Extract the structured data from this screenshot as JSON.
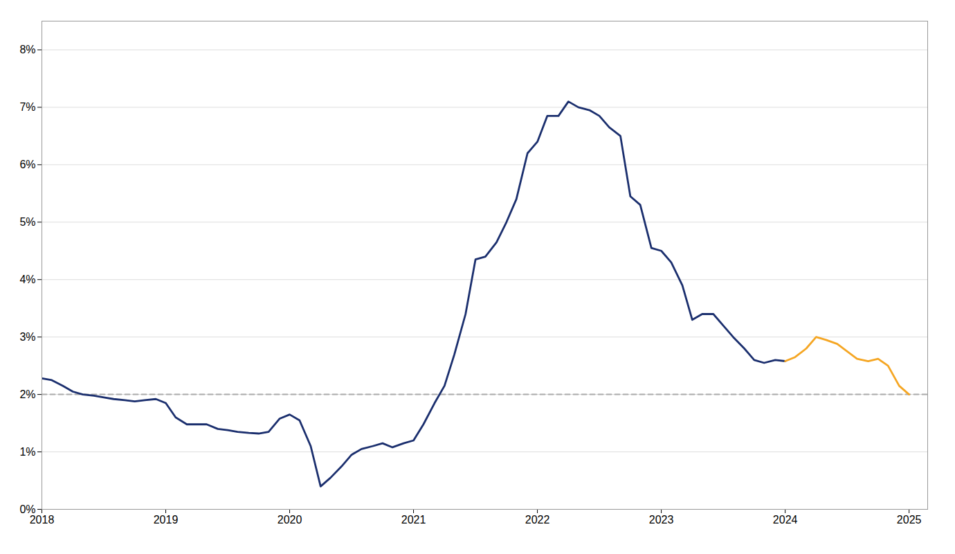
{
  "chart_data": {
    "type": "line",
    "xlim": [
      2018.0,
      2025.15
    ],
    "xticks": [
      2018,
      2019,
      2020,
      2021,
      2022,
      2023,
      2024,
      2025
    ],
    "ylim": [
      0,
      0.085
    ],
    "yticks": [
      {
        "value": 0.0,
        "label": "0%"
      },
      {
        "value": 0.01,
        "label": "1%"
      },
      {
        "value": 0.02,
        "label": "2%"
      },
      {
        "value": 0.03,
        "label": "3%"
      },
      {
        "value": 0.04,
        "label": "4%"
      },
      {
        "value": 0.05,
        "label": "5%"
      },
      {
        "value": 0.06,
        "label": "6%"
      },
      {
        "value": 0.07,
        "label": "7%"
      },
      {
        "value": 0.08,
        "label": "8%"
      }
    ],
    "grid": true,
    "series": [
      {
        "color": "#aaaaaa",
        "line_style": "dashed",
        "x": [
          2018.0,
          2025.15
        ],
        "values": [
          0.02,
          0.02
        ]
      },
      {
        "color": "#1b2f6e",
        "line_style": "solid",
        "x": [
          2018.0,
          2018.08,
          2018.17,
          2018.25,
          2018.33,
          2018.42,
          2018.5,
          2018.58,
          2018.67,
          2018.75,
          2018.83,
          2018.92,
          2019.0,
          2019.08,
          2019.17,
          2019.25,
          2019.33,
          2019.42,
          2019.5,
          2019.58,
          2019.67,
          2019.75,
          2019.83,
          2019.92,
          2020.0,
          2020.08,
          2020.17,
          2020.25,
          2020.33,
          2020.42,
          2020.5,
          2020.58,
          2020.67,
          2020.75,
          2020.83,
          2020.92,
          2021.0,
          2021.08,
          2021.17,
          2021.25,
          2021.33,
          2021.42,
          2021.5,
          2021.58,
          2021.67,
          2021.75,
          2021.83,
          2021.92,
          2022.0,
          2022.08,
          2022.17,
          2022.25,
          2022.33,
          2022.42,
          2022.5,
          2022.58,
          2022.67,
          2022.75,
          2022.83,
          2022.92,
          2023.0,
          2023.08,
          2023.17,
          2023.25,
          2023.33,
          2023.42,
          2023.5,
          2023.58,
          2023.67,
          2023.75,
          2023.83,
          2023.92,
          2024.0
        ],
        "values": [
          0.0228,
          0.0225,
          0.0215,
          0.0205,
          0.02,
          0.0198,
          0.0195,
          0.0192,
          0.019,
          0.0188,
          0.019,
          0.0192,
          0.0185,
          0.016,
          0.0148,
          0.0148,
          0.0148,
          0.014,
          0.0138,
          0.0135,
          0.0133,
          0.0132,
          0.0135,
          0.0158,
          0.0165,
          0.0155,
          0.011,
          0.004,
          0.0055,
          0.0075,
          0.0095,
          0.0105,
          0.011,
          0.0115,
          0.0108,
          0.0115,
          0.012,
          0.0148,
          0.0185,
          0.0215,
          0.027,
          0.034,
          0.0435,
          0.044,
          0.0465,
          0.05,
          0.054,
          0.062,
          0.064,
          0.0685,
          0.0685,
          0.071,
          0.07,
          0.0695,
          0.0685,
          0.0665,
          0.065,
          0.0545,
          0.053,
          0.0455,
          0.045,
          0.043,
          0.039,
          0.033,
          0.034,
          0.034,
          0.032,
          0.03,
          0.028,
          0.026,
          0.0255,
          0.026,
          0.0258
        ]
      },
      {
        "color": "#f5a623",
        "line_style": "solid",
        "x": [
          2024.0,
          2024.08,
          2024.17,
          2024.25,
          2024.33,
          2024.42,
          2024.5,
          2024.58,
          2024.67,
          2024.75,
          2024.83,
          2024.92,
          2025.0
        ],
        "values": [
          0.0258,
          0.0265,
          0.028,
          0.03,
          0.0295,
          0.0288,
          0.0275,
          0.0262,
          0.0258,
          0.0262,
          0.025,
          0.0215,
          0.02
        ]
      }
    ]
  }
}
